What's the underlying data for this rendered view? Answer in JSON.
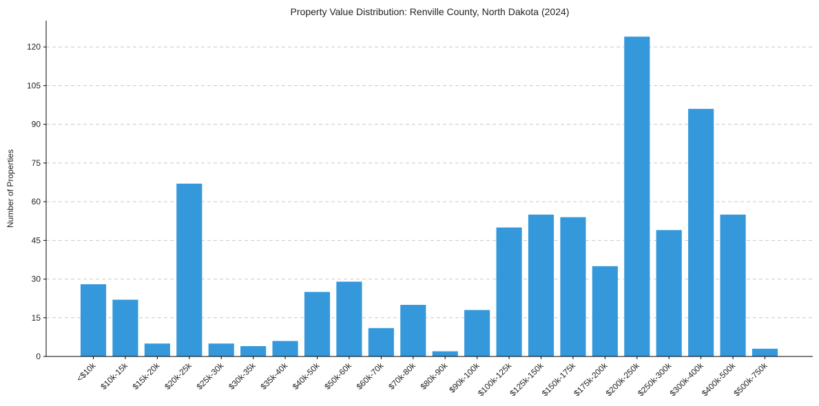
{
  "chart_data": {
    "type": "bar",
    "title": "Property Value Distribution: Renville County, North Dakota (2024)",
    "xlabel": "",
    "ylabel": "Number of Properties",
    "categories": [
      "<$10k",
      "$10k-15k",
      "$15k-20k",
      "$20k-25k",
      "$25k-30k",
      "$30k-35k",
      "$35k-40k",
      "$40k-50k",
      "$50k-60k",
      "$60k-70k",
      "$70k-80k",
      "$80k-90k",
      "$90k-100k",
      "$100k-125k",
      "$125k-150k",
      "$150k-175k",
      "$175k-200k",
      "$200k-250k",
      "$250k-300k",
      "$300k-400k",
      "$400k-500k",
      "$500k-750k"
    ],
    "values": [
      28,
      22,
      5,
      67,
      5,
      4,
      6,
      25,
      29,
      11,
      20,
      2,
      18,
      50,
      55,
      54,
      35,
      124,
      49,
      96,
      55,
      3
    ],
    "yticks": [
      0,
      15,
      30,
      45,
      60,
      75,
      90,
      105,
      120
    ],
    "ylim": [
      0,
      130.2
    ],
    "grid": "y-dashed",
    "bar_color": "#3498db"
  }
}
